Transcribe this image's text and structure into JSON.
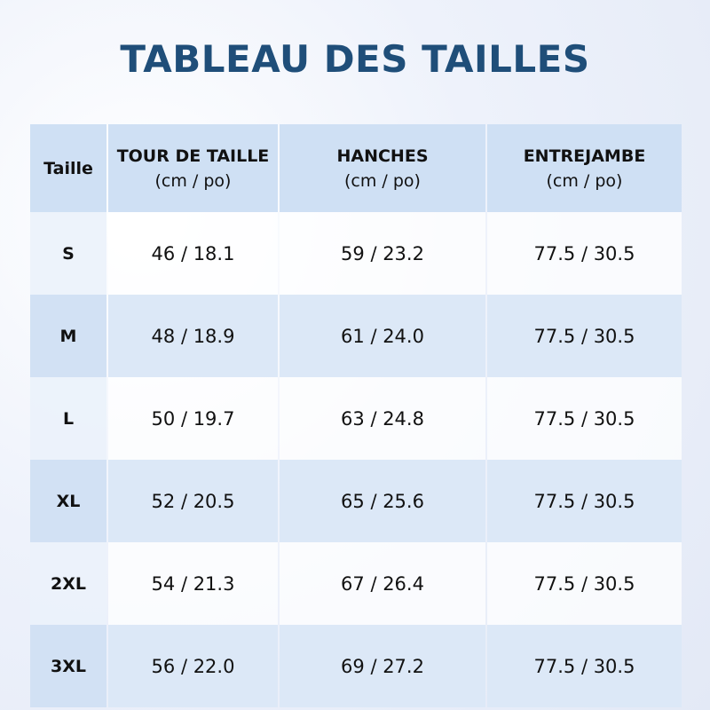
{
  "title": "TABLEAU DES TAILLES",
  "table": {
    "headers": [
      {
        "label": "Taille"
      },
      {
        "label": "TOUR DE TAILLE",
        "unit": "(cm / po)"
      },
      {
        "label": "HANCHES",
        "unit": "(cm / po)"
      },
      {
        "label": "ENTREJAMBE",
        "unit": "(cm / po)"
      }
    ],
    "rows": [
      [
        "S",
        "46 / 18.1",
        "59 / 23.2",
        "77.5 / 30.5"
      ],
      [
        "M",
        "48 / 18.9",
        "61 / 24.0",
        "77.5 / 30.5"
      ],
      [
        "L",
        "50 / 19.7",
        "63 / 24.8",
        "77.5 / 30.5"
      ],
      [
        "XL",
        "52 / 20.5",
        "65 / 25.6",
        "77.5 / 30.5"
      ],
      [
        "2XL",
        "54 / 21.3",
        "67 / 26.4",
        "77.5 / 30.5"
      ],
      [
        "3XL",
        "56 / 22.0",
        "69 / 27.2",
        "77.5 / 30.5"
      ]
    ]
  }
}
